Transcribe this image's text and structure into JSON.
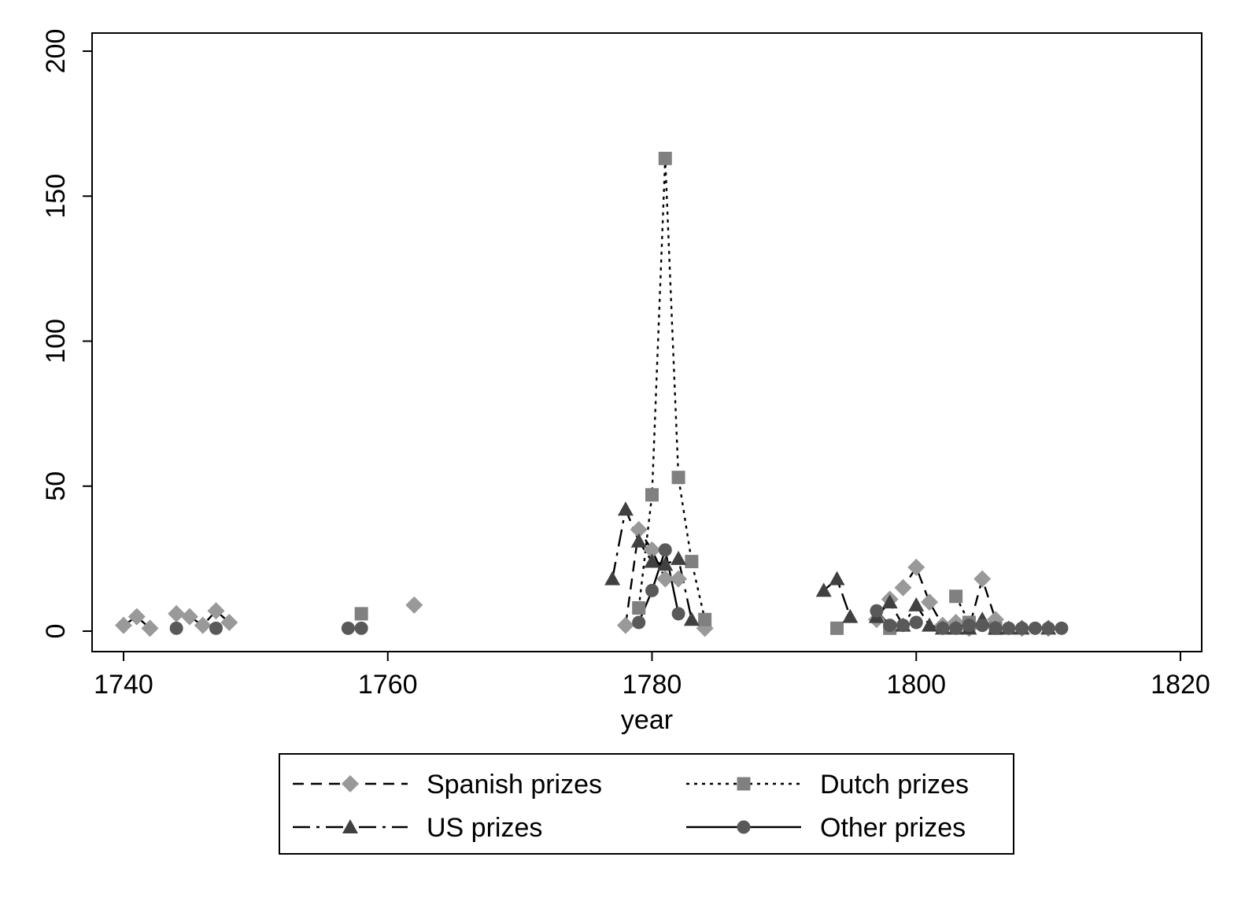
{
  "chart_data": {
    "type": "line",
    "title": "",
    "xlabel": "year",
    "ylabel": "",
    "xlim": [
      1740,
      1820
    ],
    "ylim": [
      0,
      200
    ],
    "xticks": [
      1740,
      1760,
      1780,
      1800,
      1820
    ],
    "yticks": [
      0,
      50,
      100,
      150,
      200
    ],
    "grid": false,
    "legend_position": "bottom",
    "series": [
      {
        "name": "Spanish prizes",
        "marker": "diamond",
        "line_style": "dashed",
        "color": "#999999",
        "points": [
          [
            1740,
            2
          ],
          [
            1741,
            5
          ],
          [
            1742,
            1
          ],
          [
            1744,
            6
          ],
          [
            1745,
            5
          ],
          [
            1746,
            2
          ],
          [
            1747,
            7
          ],
          [
            1748,
            3
          ],
          [
            1762,
            9
          ],
          [
            1778,
            2
          ],
          [
            1779,
            35
          ],
          [
            1780,
            28
          ],
          [
            1781,
            18
          ],
          [
            1782,
            18
          ],
          [
            1784,
            1
          ],
          [
            1797,
            4
          ],
          [
            1798,
            11
          ],
          [
            1799,
            15
          ],
          [
            1800,
            22
          ],
          [
            1801,
            10
          ],
          [
            1802,
            2
          ],
          [
            1803,
            3
          ],
          [
            1804,
            1
          ],
          [
            1805,
            18
          ],
          [
            1806,
            4
          ],
          [
            1808,
            1
          ],
          [
            1810,
            1
          ]
        ]
      },
      {
        "name": "Dutch prizes",
        "marker": "square",
        "line_style": "dotted",
        "color": "#808080",
        "points": [
          [
            1758,
            6
          ],
          [
            1779,
            8
          ],
          [
            1780,
            47
          ],
          [
            1781,
            163
          ],
          [
            1782,
            53
          ],
          [
            1783,
            24
          ],
          [
            1784,
            4
          ],
          [
            1794,
            1
          ],
          [
            1798,
            1
          ],
          [
            1803,
            12
          ],
          [
            1804,
            3
          ],
          [
            1806,
            1
          ]
        ]
      },
      {
        "name": "US prizes",
        "marker": "triangle",
        "line_style": "dashdot",
        "color": "#404040",
        "points": [
          [
            1777,
            18
          ],
          [
            1778,
            42
          ],
          [
            1779,
            31
          ],
          [
            1780,
            24
          ],
          [
            1781,
            23
          ],
          [
            1782,
            25
          ],
          [
            1783,
            4
          ],
          [
            1793,
            14
          ],
          [
            1794,
            18
          ],
          [
            1795,
            5
          ],
          [
            1797,
            5
          ],
          [
            1798,
            10
          ],
          [
            1799,
            2
          ],
          [
            1800,
            9
          ],
          [
            1801,
            2
          ],
          [
            1802,
            1
          ],
          [
            1803,
            1
          ],
          [
            1804,
            1
          ],
          [
            1805,
            4
          ],
          [
            1806,
            1
          ],
          [
            1807,
            1
          ],
          [
            1808,
            1
          ],
          [
            1810,
            1
          ]
        ]
      },
      {
        "name": "Other prizes",
        "marker": "circle",
        "line_style": "solid",
        "color": "#595959",
        "points": [
          [
            1744,
            1
          ],
          [
            1747,
            1
          ],
          [
            1757,
            1
          ],
          [
            1758,
            1
          ],
          [
            1779,
            3
          ],
          [
            1780,
            14
          ],
          [
            1781,
            28
          ],
          [
            1782,
            6
          ],
          [
            1797,
            7
          ],
          [
            1798,
            2
          ],
          [
            1799,
            2
          ],
          [
            1800,
            3
          ],
          [
            1802,
            1
          ],
          [
            1803,
            1
          ],
          [
            1804,
            2
          ],
          [
            1805,
            2
          ],
          [
            1806,
            1
          ],
          [
            1807,
            1
          ],
          [
            1808,
            1
          ],
          [
            1809,
            1
          ],
          [
            1810,
            1
          ],
          [
            1811,
            1
          ]
        ]
      }
    ]
  }
}
